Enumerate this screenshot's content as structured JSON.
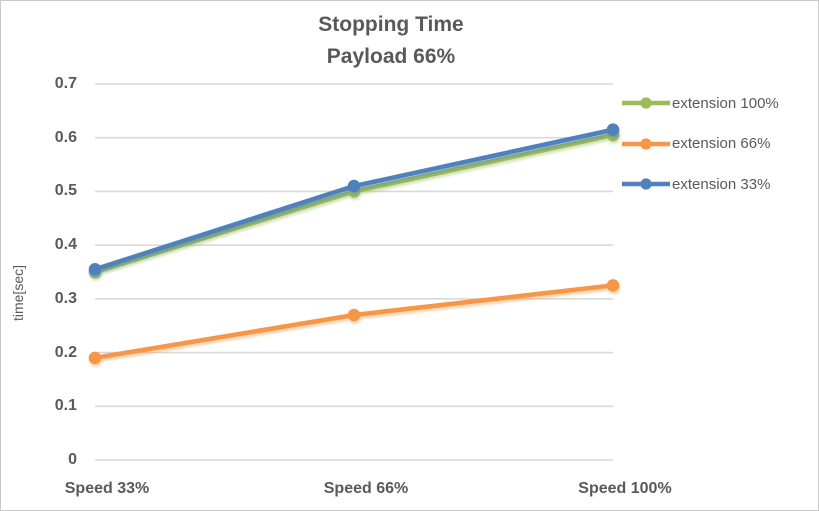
{
  "figure": {
    "background": "#ffffff",
    "border_color": "#c9c9c9"
  },
  "chart_data": {
    "type": "line",
    "title": "Stopping Time",
    "subtitle": "Payload 66%",
    "ylabel": "time[sec]",
    "xlabel": "",
    "categories": [
      "Speed 33%",
      "Speed 66%",
      "Speed 100%"
    ],
    "series": [
      {
        "name": "extension 100%",
        "color": "#9bbb59",
        "values": [
          0.35,
          0.5,
          0.605
        ]
      },
      {
        "name": "extension 66%",
        "color": "#f79646",
        "values": [
          0.19,
          0.27,
          0.325
        ]
      },
      {
        "name": "extension 33%",
        "color": "#4f81bd",
        "values": [
          0.355,
          0.51,
          0.615
        ]
      }
    ],
    "ylim": [
      0,
      0.7
    ],
    "yticks": [
      "0",
      "0.1",
      "0.2",
      "0.3",
      "0.4",
      "0.5",
      "0.6",
      "0.7"
    ],
    "grid": "horizontal-only",
    "gridline_color": "#d9d9d9",
    "text_color": "#595959",
    "legend_position": "right",
    "marker": "circle"
  }
}
